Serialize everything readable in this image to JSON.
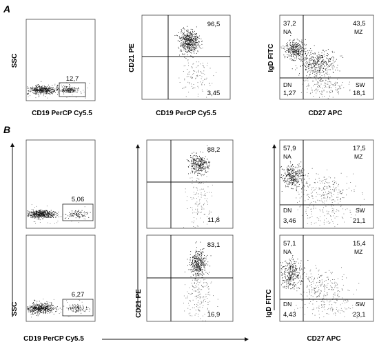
{
  "panel_labels": {
    "a": "A",
    "b": "B"
  },
  "chart_data": [
    {
      "id": "a1",
      "type": "scatter",
      "xlabel": "CD19 PerCP Cy5.5",
      "ylabel": "SSC",
      "gate_value": "12,7"
    },
    {
      "id": "a2",
      "type": "scatter",
      "xlabel": "CD19 PerCP Cy5.5",
      "ylabel": "CD21 PE",
      "quadrants": {
        "tr": "96,5",
        "br": "3,45"
      }
    },
    {
      "id": "a3",
      "type": "scatter",
      "xlabel": "CD27 APC",
      "ylabel": "IgD FITC",
      "quadrants": {
        "tl_val": "37,2",
        "tl_name": "NA",
        "tr_val": "43,5",
        "tr_name": "MZ",
        "bl_name": "DN",
        "bl_val": "1,27",
        "br_name": "SW",
        "br_val": "18,1"
      }
    },
    {
      "id": "b1",
      "type": "scatter",
      "gate_value": "5,06"
    },
    {
      "id": "b2",
      "type": "scatter",
      "gate_value": "6,27"
    },
    {
      "id": "b3",
      "type": "scatter",
      "quadrants": {
        "tr": "88,2",
        "br": "11,8"
      }
    },
    {
      "id": "b4",
      "type": "scatter",
      "quadrants": {
        "tr": "83,1",
        "br": "16,9"
      }
    },
    {
      "id": "b5",
      "type": "scatter",
      "quadrants": {
        "tl_val": "57,9",
        "tl_name": "NA",
        "tr_val": "17,5",
        "tr_name": "MZ",
        "bl_name": "DN",
        "bl_val": "3,46",
        "br_name": "SW",
        "br_val": "21,1"
      }
    },
    {
      "id": "b6",
      "type": "scatter",
      "quadrants": {
        "tl_val": "57,1",
        "tl_name": "NA",
        "tr_val": "15,4",
        "tr_name": "MZ",
        "bl_name": "DN",
        "bl_val": "4,43",
        "br_name": "SW",
        "br_val": "23,1"
      }
    }
  ],
  "panel_b_axes": {
    "ssc": "SSC",
    "cd19": "CD19 PerCP Cy5.5",
    "cd21": "CD21 PE",
    "igd": "IgD FITC",
    "cd27": "CD27 APC"
  }
}
